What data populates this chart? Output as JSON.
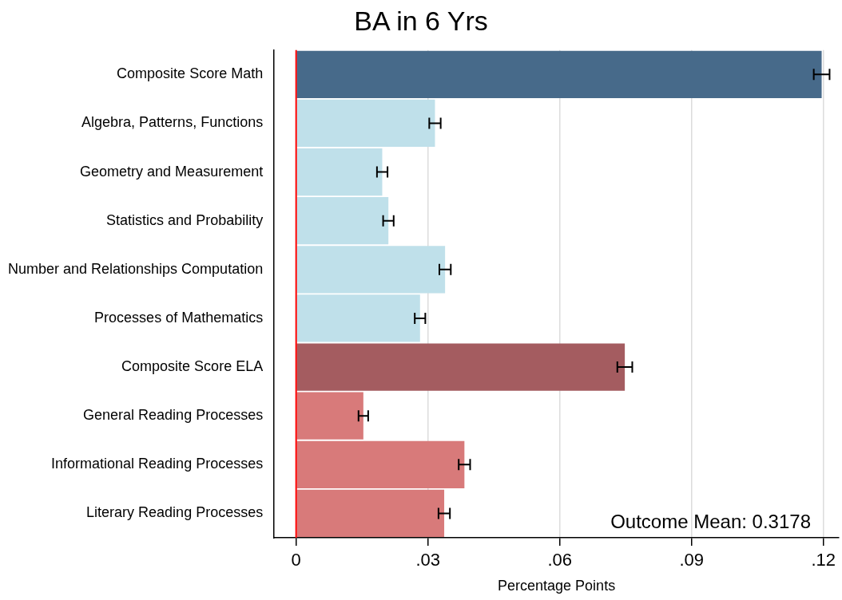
{
  "chart_data": {
    "type": "bar",
    "orientation": "horizontal",
    "title": "BA in 6 Yrs",
    "xlabel": "Percentage Points",
    "categories": [
      "Composite Score Math",
      "Algebra, Patterns, Functions",
      "Geometry and Measurement",
      "Statistics and Probability",
      "Number and Relationships Computation",
      "Processes of Mathematics",
      "Composite Score ELA",
      "General Reading Processes",
      "Informational Reading Processes",
      "Literary Reading Processes"
    ],
    "values": [
      0.1196,
      0.0316,
      0.0196,
      0.021,
      0.0339,
      0.0282,
      0.0748,
      0.0153,
      0.0383,
      0.0337
    ],
    "errors": [
      0.0018,
      0.0013,
      0.0012,
      0.0012,
      0.0013,
      0.0012,
      0.0017,
      0.0011,
      0.0013,
      0.0013
    ],
    "colors": [
      "#476a8a",
      "#bfe0ea",
      "#bfe0ea",
      "#bfe0ea",
      "#bfe0ea",
      "#bfe0ea",
      "#a45c60",
      "#d87a7a",
      "#d87a7a",
      "#d87a7a"
    ],
    "xlim": [
      -0.005,
      0.1235
    ],
    "xticks": [
      0,
      {
        "value": 0.03,
        "label": ".03"
      },
      {
        "value": 0.06,
        "label": ".06"
      },
      {
        "value": 0.09,
        "label": ".09"
      },
      {
        "value": 0.12,
        "label": ".12"
      }
    ],
    "grid": "x",
    "ref_lines": [
      {
        "axis": "x",
        "value": 0,
        "color": "#ff0000"
      }
    ],
    "annotations": [
      "Outcome Mean: 0.3178"
    ]
  }
}
